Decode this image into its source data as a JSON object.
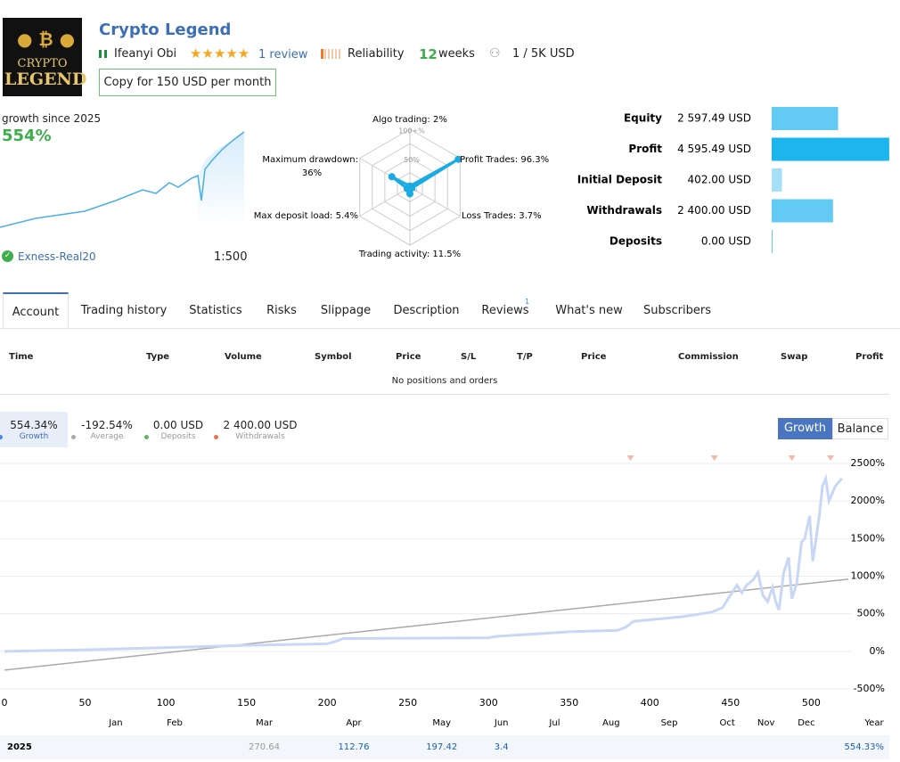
{
  "header": {
    "logo_top": "CRYPTO",
    "logo_bottom": "LEGEND",
    "title": "Crypto Legend",
    "author": "Ifeanyi Obi",
    "reviews": "1 review",
    "reliability": "Reliability",
    "weeks_value": 12,
    "weeks_unit": "weeks",
    "subscribers": "1 / 5K USD",
    "copy_button": "Copy for 150 USD per month"
  },
  "summary": {
    "growth_caption": "growth since 2025",
    "growth": "554%",
    "server": "Exness-Real20",
    "leverage": "1:500"
  },
  "radar": {
    "type": "radar",
    "rlim": [
      0,
      100
    ],
    "rticks": [
      {
        "value": 100,
        "label": "100+%"
      },
      {
        "value": 50,
        "label": "50%"
      },
      {
        "value": 0,
        "label": "0%"
      }
    ],
    "color": "#1aabe3",
    "axes": [
      {
        "label": "Algo trading: 2%",
        "value": 2
      },
      {
        "label": "Profit Trades: 96.3%",
        "value": 96.3
      },
      {
        "label": "Loss Trades: 3.7%",
        "value": 3.7
      },
      {
        "label": "Trading activity: 11.5%",
        "value": 11.5
      },
      {
        "label": "Max deposit load: 5.4%",
        "value": 5.4
      },
      {
        "label": "Maximum drawdown: 36%",
        "value": 36
      }
    ]
  },
  "balance_bars": {
    "type": "bar",
    "orientation": "horizontal",
    "xlim": [
      0,
      4600
    ],
    "categories": [
      "Equity",
      "Profit",
      "Initial Deposit",
      "Withdrawals",
      "Deposits"
    ],
    "values": [
      2597.49,
      4595.49,
      402,
      2400,
      0
    ],
    "value_labels": [
      "2 597.49 USD",
      "4 595.49 USD",
      "402.00 USD",
      "2 400.00 USD",
      "0.00 USD"
    ],
    "colors": [
      "#63cbf3",
      "#1db5ee",
      "#a6e0f8",
      "#63cbf3",
      "#63cbf3"
    ]
  },
  "tabs": {
    "items": [
      "Account",
      "Trading history",
      "Statistics",
      "Risks",
      "Slippage",
      "Description",
      "Reviews",
      "What's new",
      "Subscribers"
    ],
    "active": 0,
    "reviews_badge": 1
  },
  "positions_table": {
    "columns": [
      "Time",
      "Type",
      "Volume",
      "Symbol",
      "Price",
      "S/L",
      "T/P",
      "Price",
      "Commission",
      "Swap",
      "Profit"
    ],
    "empty": "No positions and orders"
  },
  "stats": [
    {
      "value": "554.34%",
      "label": "Growth",
      "color": "#4a86e8"
    },
    {
      "value": "-192.54%",
      "label": "Average",
      "color": "#aaaaaa"
    },
    {
      "value": "0.00 USD",
      "label": "Deposits",
      "color": "#5cb85c"
    },
    {
      "value": "2 400.00 USD",
      "label": "Withdrawals",
      "color": "#e8734a"
    }
  ],
  "chart_toggle": [
    "Growth",
    "Balance"
  ],
  "chart_data": {
    "type": "line",
    "xlim": [
      0,
      523
    ],
    "ylim": [
      -500,
      2500
    ],
    "grid": true,
    "xticks": [
      0,
      50,
      100,
      150,
      200,
      250,
      300,
      350,
      400,
      450,
      500
    ],
    "yticks": [
      {
        "value": 2500,
        "label": "2500%"
      },
      {
        "value": 2000,
        "label": "2000%"
      },
      {
        "value": 1500,
        "label": "1500%"
      },
      {
        "value": 1000,
        "label": "1000%"
      },
      {
        "value": 500,
        "label": "500%"
      },
      {
        "value": 0,
        "label": "0%"
      },
      {
        "value": -500,
        "label": "-500%"
      }
    ],
    "month_ticks": [
      {
        "value": 69,
        "label": "Jan"
      },
      {
        "value": 105.5,
        "label": "Feb"
      },
      {
        "value": 161,
        "label": "Mar"
      },
      {
        "value": 216.5,
        "label": "Apr"
      },
      {
        "value": 271,
        "label": "May"
      },
      {
        "value": 308,
        "label": "Jun"
      },
      {
        "value": 341,
        "label": "Jul"
      },
      {
        "value": 376,
        "label": "Aug"
      },
      {
        "value": 412,
        "label": "Sep"
      },
      {
        "value": 448,
        "label": "Oct"
      },
      {
        "value": 472,
        "label": "Nov"
      },
      {
        "value": 497,
        "label": "Dec"
      }
    ],
    "series": [
      {
        "color": "#c9d7f6",
        "x": [
          0,
          50,
          100,
          150,
          200,
          205,
          210,
          300,
          305,
          350,
          380,
          385,
          390,
          420,
          438,
          445,
          450,
          454,
          457,
          460,
          464,
          467,
          470,
          473,
          476,
          478,
          480,
          483,
          486,
          488,
          491,
          494,
          496,
          499,
          501,
          503,
          505,
          507,
          509,
          511,
          513,
          515,
          517,
          519
        ],
        "values": [
          0,
          20,
          50,
          80,
          100,
          130,
          170,
          180,
          200,
          260,
          280,
          320,
          400,
          460,
          520,
          580,
          750,
          880,
          780,
          880,
          950,
          1050,
          750,
          660,
          850,
          660,
          550,
          1050,
          1250,
          700,
          900,
          1450,
          1500,
          1800,
          1200,
          1500,
          1800,
          2200,
          2300,
          2000,
          2100,
          2200,
          2250,
          2300
        ]
      },
      {
        "color": "#aaaaaa",
        "x": [
          0,
          523
        ],
        "values": [
          -250,
          960
        ]
      }
    ],
    "withdrawal_markers": {
      "x": [
        388,
        440,
        488,
        512
      ],
      "color": "#f4b8a8"
    }
  },
  "year_table": {
    "header": "Year",
    "rows": [
      {
        "year": "2025",
        "months": [
          null,
          null,
          270.64,
          112.76,
          197.42,
          3.4,
          null,
          null,
          null,
          null,
          null,
          null
        ],
        "total": "554.33%"
      }
    ]
  }
}
